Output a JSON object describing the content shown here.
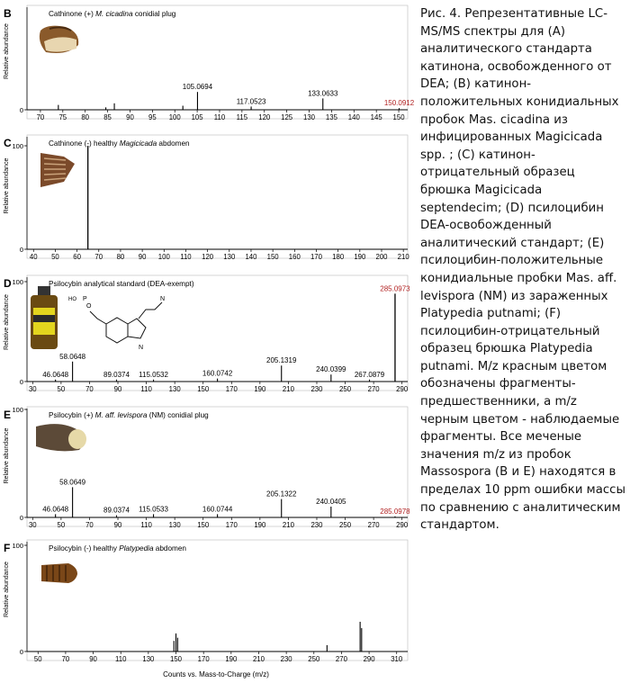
{
  "caption": "Рис. 4. Репрезентативные LC-MS/MS спектры для (A) аналитического стандарта катинона, освобожденного от DEA; (B) катинон-положительных конидиальных пробок Mas. cicadina из инфицированных Magicicada spp. ; (C) катинон-отрицательный образец брюшка Magicicada septendecim; (D) псилоцибин DEA-освобожденный аналитический стандарт; (E) псилоцибин-положительные конидиальные пробки Mas. aff. levispora (NM) из зараженных Platypedia putnami; (F) псилоцибин-отрицательный образец брюшка Platypedia putnami. M/z красным цветом обозначены фрагменты-предшественники, а m/z черным цветом - наблюдаемые фрагменты. Все меченые значения m/z из пробок Massospora (B и E) находятся в пределах 10 ppm ошибки массы по сравнению с аналитическим стандартом.",
  "common": {
    "ylabel": "Relative abundance",
    "xlabel": "Counts vs. Mass-to-Charge (m/z)",
    "colors": {
      "text": "#000000",
      "precursor": "#b22222",
      "axis": "#000000"
    }
  },
  "chart_data": [
    {
      "type": "bar",
      "panel": "B",
      "title_parts": [
        {
          "text": "Cathinone (+) ",
          "italic": false
        },
        {
          "text": "M. cicadina",
          "italic": true
        },
        {
          "text": " conidial plug",
          "italic": false
        }
      ],
      "thumbnail": "cicada-plug",
      "xlim": [
        67,
        152
      ],
      "ylim": [
        0,
        100
      ],
      "xticks": [
        70,
        75,
        80,
        85,
        90,
        95,
        100,
        105,
        110,
        115,
        120,
        125,
        130,
        135,
        140,
        145,
        150
      ],
      "yticks": [
        0
      ],
      "peaks": [
        {
          "mz": 74.0,
          "int": 6
        },
        {
          "mz": 84.6,
          "int": 3
        },
        {
          "mz": 86.5,
          "int": 8
        },
        {
          "mz": 101.8,
          "int": 5
        },
        {
          "mz": 105.0694,
          "int": 22,
          "label": "105.0694"
        },
        {
          "mz": 117.0523,
          "int": 4,
          "label": "117.0523"
        },
        {
          "mz": 133.0633,
          "int": 14,
          "label": "133.0633"
        },
        {
          "mz": 150.0912,
          "int": 2,
          "label": "150.0912",
          "precursor": true
        }
      ]
    },
    {
      "type": "bar",
      "panel": "C",
      "title_parts": [
        {
          "text": "Cathinone (-)  healthy ",
          "italic": false
        },
        {
          "text": "Magicicada",
          "italic": true
        },
        {
          "text": " abdomen",
          "italic": false
        }
      ],
      "thumbnail": "cicada-abdomen",
      "xlim": [
        37,
        212
      ],
      "ylim": [
        0,
        100
      ],
      "xticks": [
        40,
        50,
        60,
        70,
        80,
        90,
        100,
        110,
        120,
        130,
        140,
        150,
        160,
        170,
        180,
        190,
        200,
        210
      ],
      "yticks": [
        0,
        100
      ],
      "peaks": [
        {
          "mz": 65.0,
          "int": 100
        }
      ]
    },
    {
      "type": "bar",
      "panel": "D",
      "title_parts": [
        {
          "text": "Psilocybin analytical standard (DEA-exempt)",
          "italic": false
        }
      ],
      "thumbnail": "vial-structure",
      "xlim": [
        26,
        294
      ],
      "ylim": [
        0,
        100
      ],
      "xticks": [
        30,
        50,
        70,
        90,
        110,
        130,
        150,
        170,
        190,
        210,
        230,
        250,
        270,
        290
      ],
      "yticks": [
        0,
        100
      ],
      "peaks": [
        {
          "mz": 46.0648,
          "int": 2,
          "label": "46.0648"
        },
        {
          "mz": 58.0648,
          "int": 20,
          "label": "58.0648"
        },
        {
          "mz": 89.0374,
          "int": 2,
          "label": "89.0374"
        },
        {
          "mz": 115.0532,
          "int": 2,
          "label": "115.0532"
        },
        {
          "mz": 160.0742,
          "int": 3,
          "label": "160.0742"
        },
        {
          "mz": 205.1319,
          "int": 16,
          "label": "205.1319"
        },
        {
          "mz": 240.0399,
          "int": 7,
          "label": "240.0399"
        },
        {
          "mz": 267.0879,
          "int": 2,
          "label": "267.0879"
        },
        {
          "mz": 285.0973,
          "int": 88,
          "label": "285.0973",
          "precursor": true
        }
      ]
    },
    {
      "type": "bar",
      "panel": "E",
      "title_parts": [
        {
          "text": "Psilocybin (+) ",
          "italic": false
        },
        {
          "text": "M. aff. levispora",
          "italic": true
        },
        {
          "text": " (NM) conidial plug",
          "italic": false
        }
      ],
      "thumbnail": "cicada-head",
      "xlim": [
        26,
        294
      ],
      "ylim": [
        0,
        100
      ],
      "xticks": [
        30,
        50,
        70,
        90,
        110,
        130,
        150,
        170,
        190,
        210,
        230,
        250,
        270,
        290
      ],
      "yticks": [
        0,
        100
      ],
      "peaks": [
        {
          "mz": 46.0648,
          "int": 3,
          "label": "46.0648"
        },
        {
          "mz": 58.0649,
          "int": 28,
          "label": "58.0649"
        },
        {
          "mz": 89.0374,
          "int": 2,
          "label": "89.0374"
        },
        {
          "mz": 115.0533,
          "int": 3,
          "label": "115.0533"
        },
        {
          "mz": 160.0744,
          "int": 3,
          "label": "160.0744"
        },
        {
          "mz": 205.1322,
          "int": 17,
          "label": "205.1322"
        },
        {
          "mz": 240.0405,
          "int": 10,
          "label": "240.0405"
        },
        {
          "mz": 285.0978,
          "int": 1,
          "label": "285.0978",
          "precursor": true
        }
      ]
    },
    {
      "type": "bar",
      "panel": "F",
      "title_parts": [
        {
          "text": "Psilocybin (-) healthy ",
          "italic": false
        },
        {
          "text": "Platypedia",
          "italic": true
        },
        {
          "text": " abdomen",
          "italic": false
        }
      ],
      "thumbnail": "platypedia-abdomen",
      "xlim": [
        42,
        318
      ],
      "ylim": [
        0,
        100
      ],
      "xticks": [
        50,
        70,
        90,
        110,
        130,
        150,
        170,
        190,
        210,
        230,
        250,
        270,
        290,
        310
      ],
      "yticks": [
        0,
        100
      ],
      "peaks": [
        {
          "mz": 148.5,
          "int": 10
        },
        {
          "mz": 150.0,
          "int": 17
        },
        {
          "mz": 151.2,
          "int": 13
        },
        {
          "mz": 259.5,
          "int": 6
        },
        {
          "mz": 283.5,
          "int": 28
        },
        {
          "mz": 284.6,
          "int": 22
        }
      ]
    }
  ]
}
